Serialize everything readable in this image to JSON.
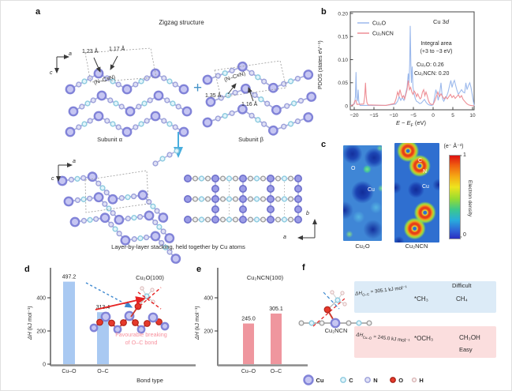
{
  "panels": {
    "a": {
      "label": "a",
      "title": "Zigzag structure",
      "axis_top": {
        "h": "a",
        "v": "c"
      },
      "subunit_alpha": {
        "name": "Subunit α",
        "bond1": "1.23 Å",
        "bond2": "1.17 Å",
        "group": "(N–C≡N)"
      },
      "subunit_beta": {
        "name": "Subunit β",
        "bond1": "1.35 Å",
        "bond2": "1.16 Å",
        "group": "(N–C≡N)"
      },
      "plus_sign": "+",
      "axis_bottom_left": {
        "h": "a",
        "v": "c"
      },
      "axis_bottom_right": {
        "v": "b",
        "h": "a"
      },
      "caption": "Layer-by-layer stacking, held together by Cu atoms"
    },
    "b": {
      "label": "b",
      "corner_pre": "Cu 3",
      "corner_d": "d",
      "ann1": "Integral area",
      "ann2": "(+3 to −3 eV)",
      "ann3": "Cu₂O: 0.26",
      "ann4": "Cu₂NCN: 0.20",
      "ylabel": "PDOS (states eV⁻¹)",
      "xlabel": {
        "e1": "E",
        "minus": " − ",
        "e2": "E",
        "sub": "F",
        "unit": " (eV)"
      }
    },
    "c": {
      "label": "c",
      "map1": {
        "caption": "Cu₂O",
        "lab1": "O",
        "lab2": "Cu"
      },
      "map2": {
        "caption": "Cu₂NCN",
        "lab1": "C",
        "lab2": "N",
        "lab3": "Cu"
      },
      "colorbar": {
        "unit": "(e⁻ Å⁻³)",
        "max": "1",
        "min": "0",
        "title": "Electron density"
      }
    },
    "d": {
      "label": "d",
      "title": "Cu₂O(100)",
      "ylabel_sym": "ΔH",
      "ylabel_unit": " (kJ mol⁻¹)",
      "xlabel": "Bond type",
      "note1": "Favourable breaking",
      "note2": "of O–C bond"
    },
    "e": {
      "label": "e",
      "title": "Cu₂NCN(100)",
      "ylabel_sym": "ΔH",
      "ylabel_unit": " (kJ mol⁻¹)"
    },
    "f": {
      "label": "f",
      "molecule": "Cu₂NCN",
      "difficult": {
        "dh_sym": "ΔH",
        "dh_sub": "O–C",
        "dh_val": " = 305.1 kJ mol⁻¹",
        "intermediate": "*CH₃",
        "product": "CH₄",
        "tag": "Difficult"
      },
      "easy": {
        "dh_sym": "ΔH",
        "dh_sub": "Cu–O",
        "dh_val": " = 245.0 kJ mol⁻¹",
        "intermediate": "*OCH₃",
        "product": "CH₃OH",
        "tag": "Easy"
      },
      "legend": [
        {
          "label": "Cu",
          "color": "#c6c6f2",
          "stroke": "#8183d8",
          "size": "large"
        },
        {
          "label": "C",
          "color": "#e2f4fa",
          "stroke": "#8ccadf",
          "size": "small"
        },
        {
          "label": "N",
          "color": "#e0e1f5",
          "stroke": "#9ba0da",
          "size": "small"
        },
        {
          "label": "O",
          "color": "#e6392b",
          "stroke": "#a82318",
          "size": "small"
        },
        {
          "label": "H",
          "color": "#fbf3f3",
          "stroke": "#d9b6b6",
          "size": "tiny"
        }
      ]
    }
  },
  "chart_data": [
    {
      "id": "b",
      "type": "line",
      "title": "Cu 3d PDOS of Cu₂O vs Cu₂NCN",
      "xlabel": "E − EF (eV)",
      "ylabel": "PDOS (states eV⁻¹)",
      "xlim": [
        -21,
        10.4
      ],
      "ylim": [
        0,
        0.2
      ],
      "xticks": [
        -20,
        -15,
        -10,
        -5,
        0,
        5,
        10
      ],
      "yticks": [
        0,
        0.05,
        0.1,
        0.15,
        0.2
      ],
      "ytick_labels": [
        "0",
        "0.05",
        "0.10",
        "0.15",
        "0.20"
      ],
      "legend_position": "top-left",
      "grid": false,
      "annotations": [
        "Cu 3d",
        "Integral area (+3 to −3 eV)",
        "Cu₂O: 0.26",
        "Cu₂NCN: 0.20"
      ],
      "series": [
        {
          "name": "Cu₂O",
          "color": "#9cb9ec",
          "x": [
            -21,
            -19.9,
            -19.7,
            -19.55,
            -19.4,
            -19.2,
            -19.0,
            -18.85,
            -18.7,
            -18.5,
            -12,
            -9.5,
            -9.0,
            -8.6,
            -8.2,
            -7.8,
            -7.4,
            -7.0,
            -6.6,
            -6.3,
            -6.1,
            -5.95,
            -5.8,
            -5.65,
            -5.5,
            -5.3,
            -5.1,
            -4.8,
            -4.5,
            -4.2,
            -3.8,
            -3.4,
            -3.0,
            -2.6,
            -2.2,
            -1.8,
            -1.4,
            -1.0,
            -0.5,
            0,
            0.4,
            0.7,
            1.0,
            1.3,
            1.7,
            2.0,
            2.2,
            2.4,
            2.7,
            3.0,
            3.4,
            3.8,
            4.2,
            4.5,
            4.8,
            5.1,
            5.4,
            5.7,
            6.0,
            6.4,
            6.8,
            7.2,
            7.6,
            8.0,
            8.3,
            8.6,
            9.0,
            9.3,
            9.6,
            9.9,
            10.2,
            10.4
          ],
          "y": [
            0,
            0.005,
            0.02,
            0.073,
            0.02,
            0.01,
            0.035,
            0.01,
            0.004,
            0.001,
            0.001,
            0.004,
            0.01,
            0.02,
            0.012,
            0.018,
            0.012,
            0.025,
            0.04,
            0.07,
            0.05,
            0.09,
            0.173,
            0.09,
            0.05,
            0.085,
            0.04,
            0.025,
            0.015,
            0.01,
            0.008,
            0.005,
            0.006,
            0.01,
            0.014,
            0.008,
            0.004,
            0.002,
            0.001,
            0.002,
            0.02,
            0.035,
            0.025,
            0.012,
            0.03,
            0.05,
            0.03,
            0.015,
            0.01,
            0.015,
            0.02,
            0.03,
            0.045,
            0.055,
            0.04,
            0.05,
            0.055,
            0.045,
            0.035,
            0.025,
            0.03,
            0.035,
            0.03,
            0.028,
            0.05,
            0.035,
            0.045,
            0.05,
            0.04,
            0.025,
            0.01,
            0
          ]
        },
        {
          "name": "Cu₂NCN",
          "color": "#ee8e95",
          "x": [
            -21,
            -20.1,
            -19.9,
            -19.6,
            -19.3,
            -17.6,
            -17.35,
            -17.15,
            -17.0,
            -16.8,
            -16.5,
            -12,
            -9.8,
            -9.4,
            -9.0,
            -8.7,
            -8.4,
            -8.1,
            -7.8,
            -7.5,
            -7.2,
            -6.9,
            -6.6,
            -6.3,
            -6.0,
            -5.7,
            -5.4,
            -5.1,
            -4.8,
            -4.5,
            -4.2,
            -3.9,
            -3.6,
            -3.3,
            -3.0,
            -2.7,
            -2.4,
            -2.1,
            -1.8,
            -1.5,
            -1.2,
            -0.9,
            -0.5,
            0,
            0.4,
            0.8,
            1.2,
            1.6,
            2.0,
            2.4,
            2.8,
            3.2,
            3.6,
            4.0,
            4.4,
            4.8,
            5.2,
            5.6,
            6.0,
            6.4,
            6.8,
            7.2,
            7.6,
            8.0,
            8.5,
            9.0,
            9.5,
            10.4
          ],
          "y": [
            0,
            0.003,
            0.01,
            0.012,
            0.003,
            0.004,
            0.02,
            0.05,
            0.025,
            0.008,
            0.002,
            0.001,
            0.005,
            0.015,
            0.03,
            0.022,
            0.035,
            0.025,
            0.018,
            0.022,
            0.015,
            0.025,
            0.035,
            0.055,
            0.035,
            0.04,
            0.03,
            0.025,
            0.032,
            0.028,
            0.02,
            0.026,
            0.02,
            0.015,
            0.018,
            0.03,
            0.035,
            0.022,
            0.03,
            0.022,
            0.012,
            0.006,
            0.003,
            0.003,
            0.01,
            0.02,
            0.03,
            0.02,
            0.026,
            0.02,
            0.015,
            0.02,
            0.015,
            0.02,
            0.025,
            0.018,
            0.022,
            0.016,
            0.02,
            0.024,
            0.018,
            0.022,
            0.014,
            0.01,
            0.005,
            0.002,
            0.001,
            0
          ]
        }
      ]
    },
    {
      "id": "d",
      "type": "bar",
      "title": "Cu₂O(100)",
      "categories": [
        "Cu–O",
        "O–C"
      ],
      "values": [
        497.2,
        313.4
      ],
      "value_labels": [
        "497.2",
        "313.4"
      ],
      "ylabel": "ΔH (kJ mol⁻¹)",
      "xlabel": "Bond type",
      "yticks": [
        0,
        200,
        400
      ],
      "ylim": [
        0,
        560
      ],
      "bar_color": "#a9c9f2",
      "annotation": "Favourable breaking of O–C bond"
    },
    {
      "id": "e",
      "type": "bar",
      "title": "Cu₂NCN(100)",
      "categories": [
        "Cu–O",
        "O–C"
      ],
      "values": [
        245.0,
        305.1
      ],
      "value_labels": [
        "245.0",
        "305.1"
      ],
      "ylabel": "ΔH (kJ mol⁻¹)",
      "yticks": [
        200,
        400
      ],
      "ylim": [
        0,
        560
      ],
      "bar_color": "#ef969e"
    }
  ]
}
